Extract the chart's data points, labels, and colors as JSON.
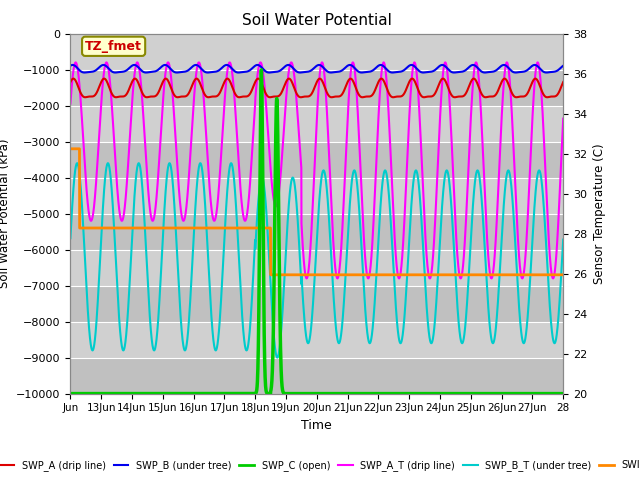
{
  "title": "Soil Water Potential",
  "ylabel_left": "Soil Water Potential (kPa)",
  "ylabel_right": "Sensor Temperature (C)",
  "xlabel": "Time",
  "ylim_left": [
    -10000,
    0
  ],
  "ylim_right": [
    20,
    38
  ],
  "x_tick_labels": [
    "Jun",
    "13Jun",
    "14Jun",
    "15Jun",
    "16Jun",
    "17Jun",
    "18Jun",
    "19Jun",
    "20Jun",
    "21Jun",
    "22Jun",
    "23Jun",
    "24Jun",
    "25Jun",
    "26Jun",
    "27Jun",
    "28"
  ],
  "plot_bg_color": "#d8d8d8",
  "band_colors": [
    "#d8d8d8",
    "#c8c8c8"
  ],
  "annotation_text": "TZ_fmet",
  "annotation_bg": "#ffffcc",
  "annotation_border": "#888800",
  "annotation_text_color": "#cc0000",
  "lines": {
    "SWP_A": {
      "color": "#dd0000",
      "label": "SWP_A (drip line)",
      "lw": 1.5
    },
    "SWP_B": {
      "color": "#0000ee",
      "label": "SWP_B (under tree)",
      "lw": 1.5
    },
    "SWP_C": {
      "color": "#00cc00",
      "label": "SWP_C (open)",
      "lw": 2.5
    },
    "SWP_A_T": {
      "color": "#ff00ff",
      "label": "SWP_A_T (drip line)",
      "lw": 1.5
    },
    "SWP_B_T": {
      "color": "#00cccc",
      "label": "SWP_B_T (under tree)",
      "lw": 1.5
    },
    "SWP_temp": {
      "color": "#ff8800",
      "label": "SWI",
      "lw": 2.0
    }
  }
}
